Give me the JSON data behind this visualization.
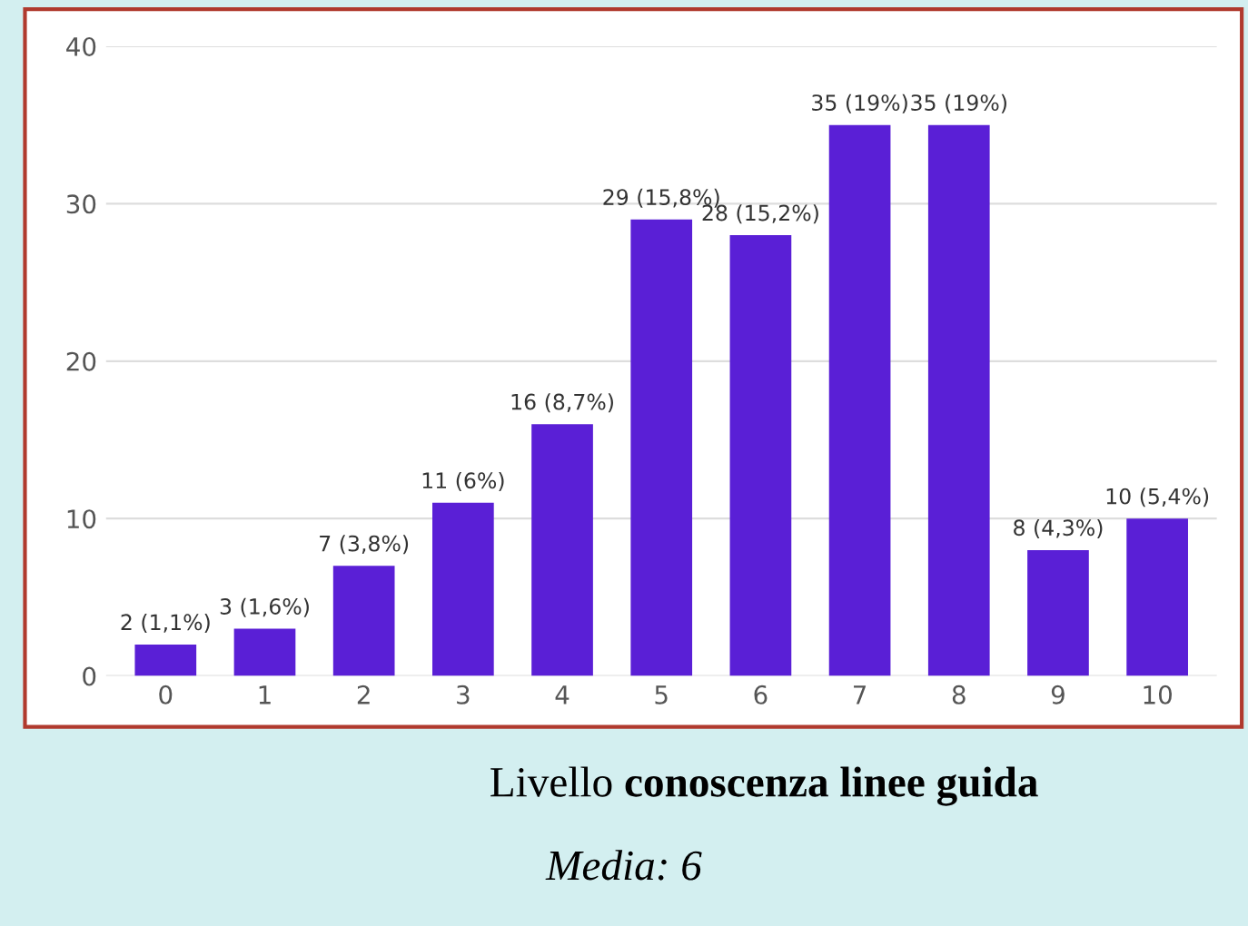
{
  "chart_data": {
    "type": "bar",
    "title": "Livello conoscenza linee guida",
    "categories": [
      "0",
      "1",
      "2",
      "3",
      "4",
      "5",
      "6",
      "7",
      "8",
      "9",
      "10"
    ],
    "values": [
      2,
      3,
      7,
      11,
      16,
      29,
      28,
      35,
      35,
      8,
      10
    ],
    "value_labels": [
      "2 (1,1%)",
      "3 (1,6%)",
      "7 (3,8%)",
      "11 (6%)",
      "16 (8,7%)",
      "29 (15,8%)",
      "28 (15,2%)",
      "35 (19%)",
      "35 (19%)",
      "8 (4,3%)",
      "10 (5,4%)"
    ],
    "color": "#5a1fd6",
    "ylim": [
      0,
      40
    ],
    "yticks": [
      0,
      10,
      20,
      30,
      40
    ],
    "grid": "y",
    "legend": false,
    "annotations": [
      "Media: 6"
    ]
  }
}
